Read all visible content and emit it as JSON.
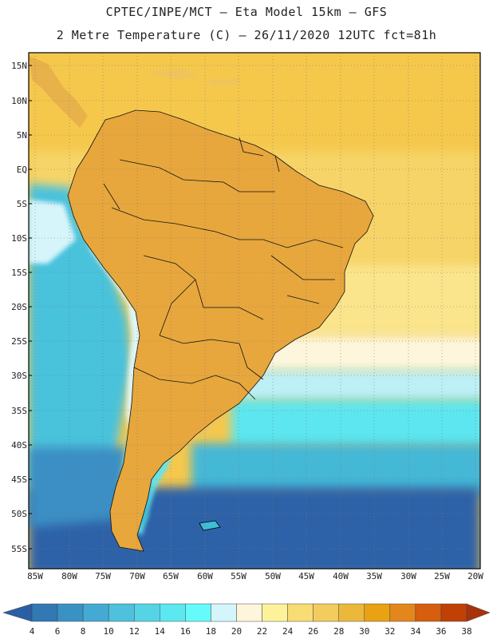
{
  "header": {
    "line1": "CPTEC/INPE/MCT –  Eta Model 15km – GFS",
    "line2": "2 Metre Temperature (C) – 26/11/2020 12UTC fct=81h"
  },
  "map": {
    "lat_labels": [
      "15N",
      "10N",
      "5N",
      "EQ",
      "5S",
      "10S",
      "15S",
      "20S",
      "25S",
      "30S",
      "35S",
      "40S",
      "45S",
      "50S",
      "55S"
    ],
    "lon_labels": [
      "85W",
      "80W",
      "75W",
      "70W",
      "65W",
      "60W",
      "55W",
      "50W",
      "45W",
      "40W",
      "35W",
      "30W",
      "25W",
      "20W"
    ]
  },
  "colorbar": {
    "labels": [
      "4",
      "6",
      "8",
      "10",
      "12",
      "14",
      "16",
      "18",
      "20",
      "22",
      "24",
      "26",
      "28",
      "30",
      "32",
      "34",
      "36",
      "38"
    ],
    "colors": [
      "#2a5ea6",
      "#3178b5",
      "#3a92c4",
      "#44aad3",
      "#4fc0de",
      "#55d4e6",
      "#5ce8f0",
      "#66fbfb",
      "#d4f6fb",
      "#fdf5dc",
      "#fdf29a",
      "#f8dc74",
      "#f2cc5c",
      "#ecb83c",
      "#e8a212",
      "#e3861c",
      "#d65e0e",
      "#c04006",
      "#a8320c"
    ]
  },
  "colors": {
    "ocean_cold": "#2f62a8",
    "ocean_cool": "#3fbcd6",
    "ocean_warm": "#f6d16a",
    "land_hot": "#c04a14",
    "land_warm": "#e2a03a"
  }
}
